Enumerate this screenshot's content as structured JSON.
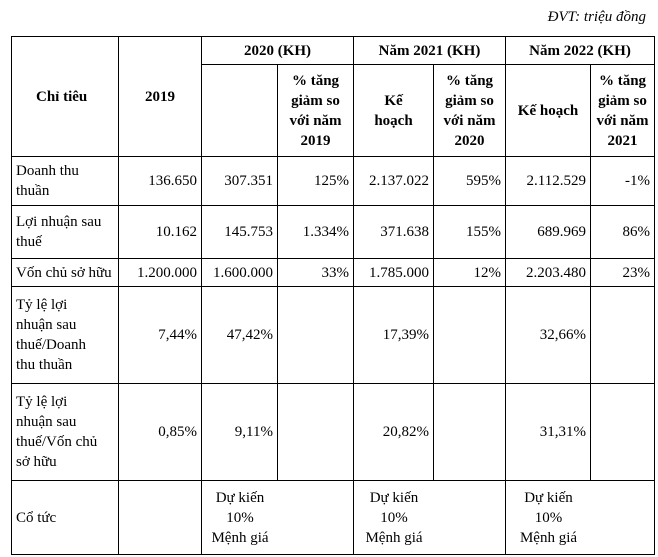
{
  "unit_label": "ĐVT: triệu đồng",
  "header": {
    "col_indicator": "Chỉ tiêu",
    "col_2019": "2019",
    "group_2020": "2020 (KH)",
    "group_2021": "Năm 2021 (KH)",
    "group_2022": "Năm 2022 (KH)",
    "pct_2020": [
      "% tăng",
      "giảm so",
      "với năm",
      "2019"
    ],
    "plan_2021": [
      "Kế",
      "hoạch"
    ],
    "pct_2021": [
      "% tăng",
      "giảm so",
      "với năm",
      "2020"
    ],
    "plan_2022": "Kế hoạch",
    "pct_2022": [
      "% tăng",
      "giảm so",
      "với năm",
      "2021"
    ]
  },
  "rows": [
    {
      "label": [
        "Doanh thu",
        "thuần"
      ],
      "y2019": "136.650",
      "v2020": "307.351",
      "p2020": "125%",
      "v2021": "2.137.022",
      "p2021": "595%",
      "v2022": "2.112.529",
      "p2022": "-1%"
    },
    {
      "label": [
        "Lợi nhuận sau",
        "thuế"
      ],
      "y2019": "10.162",
      "v2020": "145.753",
      "p2020": "1.334%",
      "v2021": "371.638",
      "p2021": "155%",
      "v2022": "689.969",
      "p2022": "86%"
    },
    {
      "label": [
        "Vốn chủ sở hữu"
      ],
      "y2019": "1.200.000",
      "v2020": "1.600.000",
      "p2020": "33%",
      "v2021": "1.785.000",
      "p2021": "12%",
      "v2022": "2.203.480",
      "p2022": "23%"
    },
    {
      "label": [
        "Tỷ lệ lợi",
        "nhuận sau",
        "thuế/Doanh",
        "thu thuần"
      ],
      "y2019": "7,44%",
      "v2020": "47,42%",
      "p2020": "",
      "v2021": "17,39%",
      "p2021": "",
      "v2022": "32,66%",
      "p2022": ""
    },
    {
      "label": [
        "Tỷ lệ lợi",
        "nhuận sau",
        "thuế/Vốn chủ",
        "sở hữu"
      ],
      "y2019": "0,85%",
      "v2020": "9,11%",
      "p2020": "",
      "v2021": "20,82%",
      "p2021": "",
      "v2022": "31,31%",
      "p2022": ""
    }
  ],
  "dividend": {
    "label": "Cổ tức",
    "y2019": "",
    "v2020": [
      "Dự kiến",
      "10%",
      "Mệnh giá"
    ],
    "v2021": [
      "Dự kiến",
      "10%",
      "Mệnh giá"
    ],
    "v2022": [
      "Dự kiến",
      "10%",
      "Mệnh giá"
    ]
  }
}
